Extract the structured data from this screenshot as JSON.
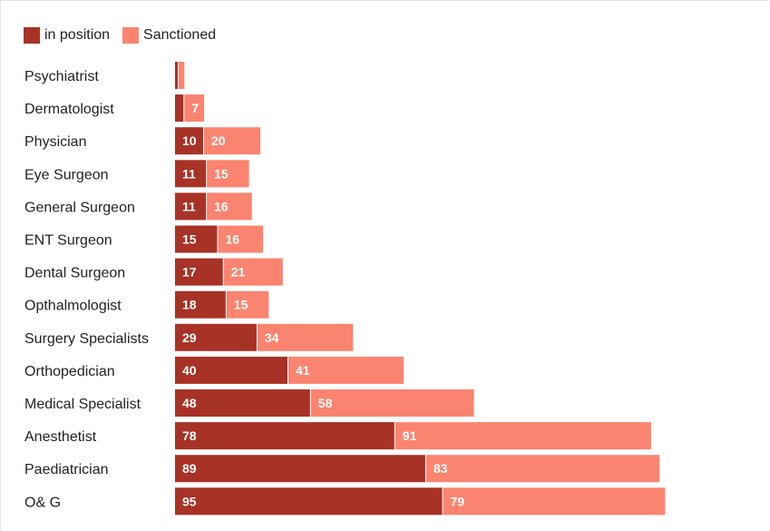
{
  "chart_data": {
    "type": "bar",
    "orientation": "horizontal",
    "stacked": true,
    "legend": "top-left",
    "grid": false,
    "categories": [
      "Psychiatrist",
      "Dermatologist",
      "Physician",
      "Eye Surgeon",
      "General Surgeon",
      "ENT Surgeon",
      "Dental Surgeon",
      "Opthalmologist",
      "Surgery Specialists",
      "Orthopedician",
      "Medical Specialist",
      "Anesthetist",
      "Paediatrician",
      "O& G"
    ],
    "series": [
      {
        "name": "in position",
        "color": "#a83226",
        "values": [
          1,
          3,
          10,
          11,
          11,
          15,
          17,
          18,
          29,
          40,
          48,
          78,
          89,
          95
        ],
        "labels": [
          "",
          "",
          "10",
          "11",
          "11",
          "15",
          "17",
          "18",
          "29",
          "40",
          "48",
          "78",
          "89",
          "95"
        ]
      },
      {
        "name": "Sanctioned",
        "color": "#fb8470",
        "values": [
          2,
          7,
          20,
          15,
          16,
          16,
          21,
          15,
          34,
          41,
          58,
          91,
          83,
          79
        ],
        "labels": [
          "",
          "7",
          "20",
          "15",
          "16",
          "16",
          "21",
          "15",
          "34",
          "41",
          "58",
          "91",
          "83",
          "79"
        ]
      }
    ],
    "xlim": [
      0,
      175
    ]
  }
}
